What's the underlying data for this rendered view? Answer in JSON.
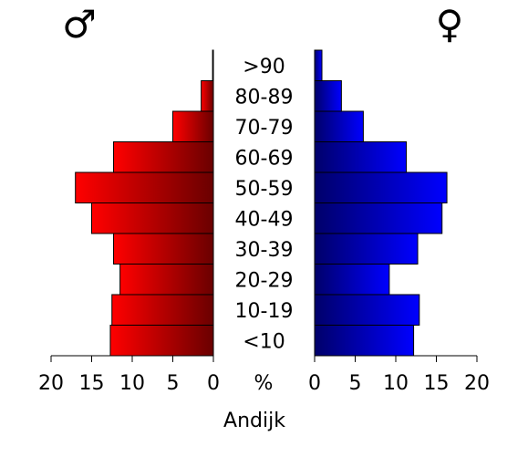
{
  "chart_data": {
    "type": "bar",
    "orientation": "horizontal",
    "subtype": "population-pyramid",
    "categories": [
      ">90",
      "80-89",
      "70-79",
      "60-69",
      "50-59",
      "40-49",
      "30-39",
      "20-29",
      "10-19",
      "<10"
    ],
    "series": [
      {
        "name": "♂",
        "side": "left",
        "color_light": "#ff0000",
        "color_dark": "#6a0000",
        "values": [
          0.1,
          1.5,
          5.0,
          12.3,
          17.0,
          15.0,
          12.3,
          11.5,
          12.5,
          12.7
        ]
      },
      {
        "name": "♀",
        "side": "right",
        "color_light": "#0000ff",
        "color_dark": "#00006a",
        "values": [
          0.9,
          3.3,
          6.0,
          11.3,
          16.3,
          15.7,
          12.7,
          9.2,
          12.9,
          12.2
        ]
      }
    ],
    "xlim": [
      0,
      20
    ],
    "xticks": [
      "20",
      "15",
      "10",
      "5",
      "0"
    ],
    "xticks_right": [
      "0",
      "5",
      "10",
      "15",
      "20"
    ],
    "xunit": "%",
    "xlabel": "Andijk",
    "male_symbol": "♂",
    "female_symbol": "♀"
  }
}
